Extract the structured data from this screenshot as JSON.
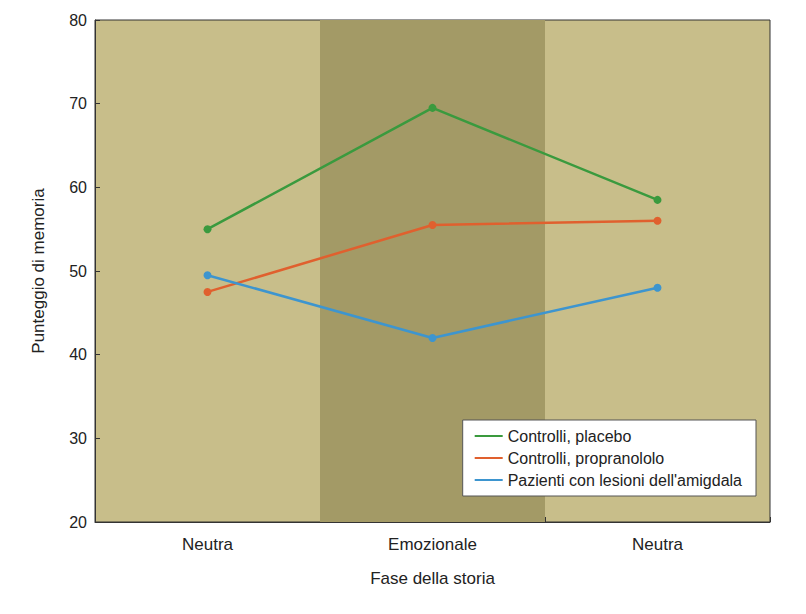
{
  "chart_data": {
    "type": "line",
    "x_label": "Fase della storia",
    "y_label": "Punteggio di memoria",
    "categories": [
      "Neutra",
      "Emozionale",
      "Neutra"
    ],
    "series": [
      {
        "name": "Controlli, placebo",
        "color": "#3a9a3e",
        "values": [
          55,
          69.5,
          58.5
        ]
      },
      {
        "name": "Controlli, propranololo",
        "color": "#e0602e",
        "values": [
          47.5,
          55.5,
          56
        ]
      },
      {
        "name": "Pazienti con lesioni dell'amigdala",
        "color": "#3d95cf",
        "values": [
          49.5,
          42,
          48
        ]
      }
    ],
    "ylim": [
      20,
      80
    ],
    "yticks": [
      20,
      30,
      40,
      50,
      60,
      70,
      80
    ],
    "grid": false,
    "legend": "lower right",
    "marker": "circle"
  }
}
